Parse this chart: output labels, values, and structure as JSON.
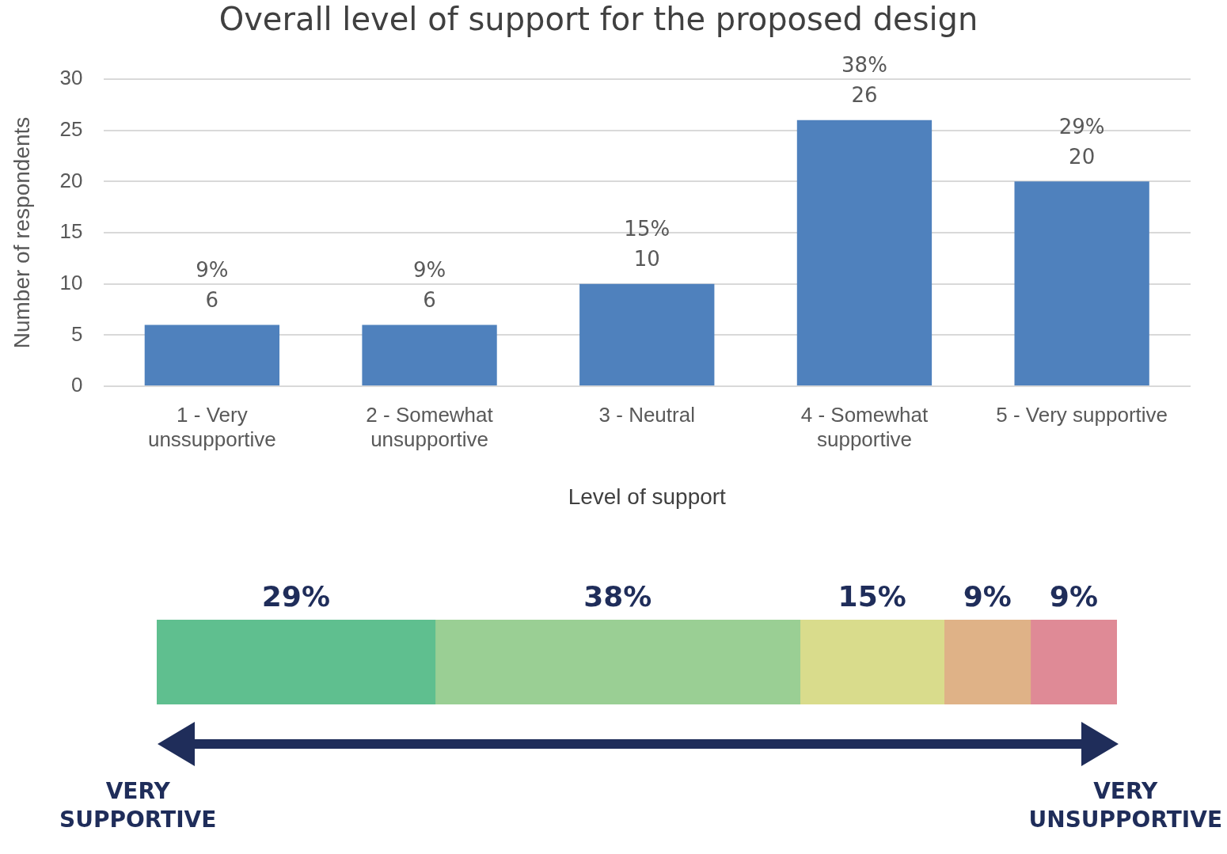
{
  "chart_data": [
    {
      "type": "bar",
      "title": "Overall level of support for the proposed design",
      "xlabel": "Level of support",
      "ylabel": "Number of respondents",
      "categories": [
        "1 - Very unssupportive",
        "2 - Somewhat unsupportive",
        "3 - Neutral",
        "4 - Somewhat supportive",
        "5 - Very supportive"
      ],
      "values": [
        6,
        6,
        10,
        26,
        20
      ],
      "color": "#4f81bd",
      "ylim": [
        0,
        30
      ],
      "yticks": [
        0,
        5,
        10,
        15,
        20,
        25,
        30
      ],
      "grid": "y",
      "legend": false,
      "data_labels": true,
      "annotations": [
        {
          "text": "9%",
          "x": "1 - Very unssupportive",
          "y": 6
        },
        {
          "text": "9%",
          "x": "2 - Somewhat unsupportive",
          "y": 6
        },
        {
          "text": "15%",
          "x": "3 - Neutral",
          "y": 10
        },
        {
          "text": "38%",
          "x": "4 - Somewhat supportive",
          "y": 26
        },
        {
          "text": "29%",
          "x": "5 - Very supportive",
          "y": 20
        }
      ]
    },
    {
      "type": "bar",
      "orientation": "horizontal",
      "stacked": true,
      "categories": [
        null
      ],
      "legend": false,
      "series": [
        {
          "color": "#5fbf8f",
          "values": [
            29
          ],
          "value_labels": [
            "29%"
          ]
        },
        {
          "color": "#9acf94",
          "values": [
            38
          ],
          "value_labels": [
            "38%"
          ]
        },
        {
          "color": "#d9dc8c",
          "values": [
            15
          ],
          "value_labels": [
            "15%"
          ]
        },
        {
          "color": "#dfb287",
          "values": [
            9
          ],
          "value_labels": [
            "9%"
          ]
        },
        {
          "color": "#df8a96",
          "values": [
            9
          ],
          "value_labels": [
            "9%"
          ]
        }
      ],
      "annotations": [
        "VERY SUPPORTIVE",
        "VERY UNSUPPORTIVE"
      ]
    }
  ]
}
